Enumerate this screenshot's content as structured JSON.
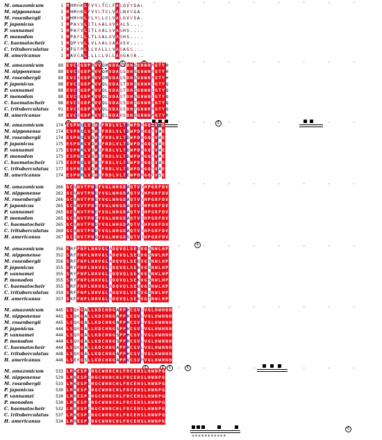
{
  "species": [
    "M. amazonicum",
    "M. nipponense",
    "M. rosenbergii",
    "P. japonicus",
    "P. vannamei",
    "P. monodon",
    "C. haematocheir",
    "C. trituberculatus",
    "H. americanus"
  ],
  "blocks": [
    {
      "positions": [
        "1",
        "1",
        "1",
        "1",
        "1",
        "1",
        "1",
        "1",
        "1"
      ],
      "sequences": [
        "MHMHKLFVYLTCLFALGVVGAL",
        "MHMHKLFVYLTCLVALNVVGA.",
        "MHMHKLFLYLLCLVALGVVSA.",
        "MPAVVLITLAALAVAALS....",
        "MPAFVLITLAALGVAGHS....",
        "MPAFLLLTLAALAVAGHS....",
        "MQPVVLLVLAALGAAASV....",
        "MFGFPLLLVALLLVAGAGS...",
        "MAVGAL.LLLLVLLAAGASA.."
      ],
      "annotations": {
        "cysteines": 3,
        "dashed": "----"
      }
    },
    {
      "positions": [
        "89",
        "89",
        "89",
        "88",
        "88",
        "88",
        "88",
        "91",
        "89"
      ],
      "sequences": [
        "EVCEGDPRVVQMVDAQSDHSGNWHMGTYH",
        "EVCEGDPRVVQMVDAQSDHSGNWHMGTYH",
        "EVCEGDPRVVQMVDAQSDHSGNWHMGTYH",
        "EVCQGDPKVVQLVDAQTDHSGNWHLGTYQ",
        "EVCQGDPKVVQLVDAQTDHSGNWHLGTYQ",
        "EVCQGDPKVVQLVDAQTDHSGNWHLGTYQ",
        "EVCEGDPRVVQLVDAQSDHTGNWHMGTYQ",
        "EVCEGDPRVVQLVDAQSDHTGNWHMGTYQ",
        "EVCEGDPKVVELVDARSDHSGNWHMGTYR"
      ]
    },
    {
      "positions": [
        "174",
        "174",
        "174",
        "175",
        "175",
        "175",
        "175",
        "177",
        "174"
      ],
      "sequences": [
        "ESPNQLVDWSFRDLVLTDWPDKGQYVAE",
        "ESPNQLVDWSFRDLVLTDWPDKGQYVAE",
        "ESPNQLVDWSFRDLVLTDWPDKGQYVAE",
        "ESPNKLVDWDFRDLVLTDWPDRGQYVAE",
        "ESPNKLVDWDFRDLVLTDWPDRGQYVAE",
        "ESPNKLVDWDFRDLVLTDWPDRGQYVAE",
        "ESPNQLVDWSFRDLVLTDWPDKGQYVAE",
        "ESPNQLVDWSFRDLVLTDWPDKGQYVAE",
        "ESPNRLVEWSFRDLVLTEWPDRGQFVSE"
      ]
    },
    {
      "positions": [
        "266",
        "262",
        "266",
        "265",
        "265",
        "265",
        "265",
        "269",
        "267"
      ],
      "sequences": [
        "GCVNVTPNDYVGLWHGDAQTVVHPGRFDV",
        "GCVNVTPNDYVGLWHGDAQTVVHPGRFDV",
        "GCVNVTPNDYVGLWHGDAQTVVHPGRFDV",
        "GCVNVTPNEYVGLWHGDAQTVIHPGRFDV",
        "GCVNVTPNEYVGLWHGDAQTVIHPGRFDV",
        "GCVNVTPNEYVGLWHGDAQTVIHPGRFDV",
        "GCVNVTPNDYVGLWHGDAQTVVHPGRFDV",
        "GCVNVTPNDYVGLWHGDAQTVVHPGRFDV",
        "GCINVTPNQYVGLWHGDSQTVIHPGRFDV"
      ]
    },
    {
      "positions": [
        "356",
        "352",
        "356",
        "355",
        "355",
        "355",
        "355",
        "359",
        "357"
      ],
      "sequences": [
        "SRFFNPLNHVGLADQVQLSEQVGSNWLHP",
        "SRFFNPLNHVGLADQVQLSEQVGSNWLHP",
        "SRFFNPLNHVGLADQVQLSEQVGSNWLHP",
        "SRYFNPLNHVGLTDQVQLSEKVGSNWLHP",
        "SRYFNPLNHVGLTDQVQLSEKVGSNWLHP",
        "SRYFNPLNHVGLTDQVQLSEKVGSNWLHP",
        "SRFFNPLNHVGLADQVQLSEQVGSNWLHP",
        "SRFFNPLNHVGLADQVQLSEQVGSNWLHP",
        "SKFFNPLNHVGLSDQVQLSEKVGTNWLHP"
      ]
    },
    {
      "positions": [
        "445",
        "441",
        "445",
        "444",
        "444",
        "444",
        "444",
        "448",
        "446"
      ],
      "sequences": [
        "LSQKGALLKDCHNGAPPHCSVLVGLHWHNH",
        "LSQKGALLKDCHNGAPPHCSVLVGLHWHNH",
        "LSQKGALLKDCHNGAPPHCSVLVGLHWHNH",
        "LSQRGALLKDCHNGSPPHCSVLVGLHWHNH",
        "LSQRGALLKDCHNGSPPHCSVLVGLHWHNH",
        "LSQRGALLKDCHNGSPPHCSVLVGLHWHNH",
        "LSQKGALLKDCHNGAPPHCSVLVGLHWHNH",
        "LSQKGALLKDCHNGAPPHCSVLVGLHWHNH",
        "LSERGSLLKDCHNGAPPQCSVMVGLHWHNH"
      ]
    },
    {
      "positions": [
        "533",
        "529",
        "533",
        "530",
        "530",
        "530",
        "532",
        "537",
        "534"
      ],
      "sequences": [
        "LMKESPDHGCWHNCHLFRCEHSLHWNPG",
        "LMKESPDHGCWHNCHLFRCEHSLHWNPG",
        "LMKESPDHGCWHNCHLFRCEHSLHWNPG",
        "LMKESPEHGCWHNCHLFRCEHSLHWNPG",
        "LMKESPEHGCWHNCHLFRCEHSLHWNPG",
        "LMKESPEHGCWHNCHLFRCEHSLHWNPG",
        "LMKESPDHGCWHNCHLFRCEHSLHWNPG",
        "LMKESPDHGCWHNCHLFRCEHSLHWNPG",
        "LMRESPDHGCWHNCHLFRCEHSLHWNPG"
      ],
      "annotations": {
        "stars": "***********"
      }
    }
  ],
  "colors": {
    "identical_bg": "#e8101c",
    "identical_text": "#ffffff",
    "similar_text": "#e8101c",
    "box_border": "#2233cc"
  }
}
